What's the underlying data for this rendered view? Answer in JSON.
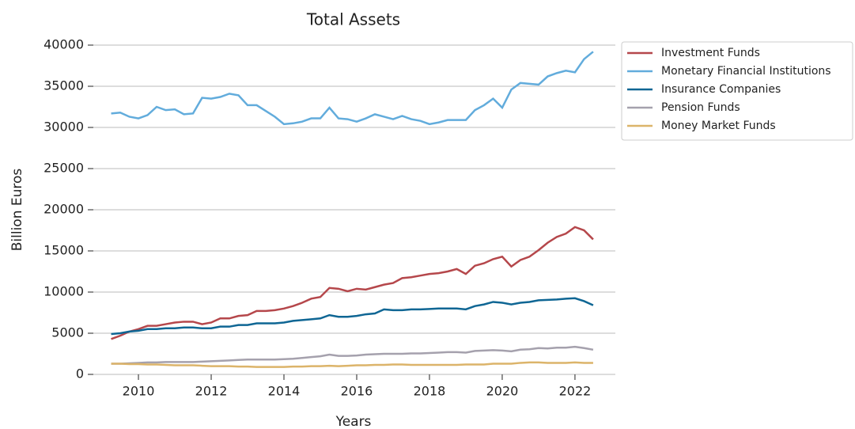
{
  "chart_data": {
    "type": "line",
    "title": "Total Assets",
    "x_label": "Years",
    "y_label": "Billion Euros",
    "x": [
      2009.25,
      2009.5,
      2009.75,
      2010,
      2010.25,
      2010.5,
      2010.75,
      2011,
      2011.25,
      2011.5,
      2011.75,
      2012,
      2012.25,
      2012.5,
      2012.75,
      2013,
      2013.25,
      2013.5,
      2013.75,
      2014,
      2014.25,
      2014.5,
      2014.75,
      2015,
      2015.25,
      2015.5,
      2015.75,
      2016,
      2016.25,
      2016.5,
      2016.75,
      2017,
      2017.25,
      2017.5,
      2017.75,
      2018,
      2018.25,
      2018.5,
      2018.75,
      2019,
      2019.25,
      2019.5,
      2019.75,
      2020,
      2020.25,
      2020.5,
      2020.75,
      2021,
      2021.25,
      2021.5,
      2021.75,
      2022,
      2022.25,
      2022.5
    ],
    "series": [
      {
        "name": "Investment Funds",
        "color": "#b5474b",
        "values": [
          4300,
          4700,
          5200,
          5500,
          5900,
          5900,
          6100,
          6300,
          6400,
          6400,
          6100,
          6300,
          6800,
          6800,
          7100,
          7200,
          7700,
          7700,
          7800,
          8000,
          8300,
          8700,
          9200,
          9400,
          10500,
          10400,
          10100,
          10400,
          10300,
          10600,
          10900,
          11100,
          11700,
          11800,
          12000,
          12200,
          12300,
          12500,
          12800,
          12200,
          13200,
          13500,
          14000,
          14300,
          13100,
          13900,
          14300,
          15100,
          16000,
          16700,
          17100,
          17900,
          17500,
          16400
        ]
      },
      {
        "name": "Monetary Financial Institutions",
        "color": "#62acdc",
        "values": [
          31700,
          31800,
          31300,
          31100,
          31500,
          32500,
          32100,
          32200,
          31600,
          31700,
          33600,
          33500,
          33700,
          34100,
          33900,
          32700,
          32700,
          32000,
          31300,
          30400,
          30500,
          30700,
          31100,
          31100,
          32400,
          31100,
          31000,
          30700,
          31100,
          31600,
          31300,
          31000,
          31400,
          31000,
          30800,
          30400,
          30600,
          30900,
          30900,
          30900,
          32100,
          32700,
          33500,
          32400,
          34600,
          35400,
          35300,
          35200,
          36200,
          36600,
          36900,
          36700,
          38300,
          39200
        ]
      },
      {
        "name": "Insurance Companies",
        "color": "#0f6694",
        "values": [
          4900,
          5000,
          5200,
          5300,
          5500,
          5500,
          5600,
          5600,
          5700,
          5700,
          5600,
          5600,
          5800,
          5800,
          6000,
          6000,
          6200,
          6200,
          6200,
          6300,
          6500,
          6600,
          6700,
          6800,
          7200,
          7000,
          7000,
          7100,
          7300,
          7400,
          7900,
          7800,
          7800,
          7900,
          7900,
          7950,
          8000,
          8000,
          8000,
          7900,
          8300,
          8500,
          8800,
          8700,
          8500,
          8700,
          8800,
          9000,
          9050,
          9100,
          9200,
          9250,
          8900,
          8400
        ]
      },
      {
        "name": "Pension Funds",
        "color": "#a5a1ad",
        "values": [
          1300,
          1300,
          1350,
          1400,
          1450,
          1450,
          1500,
          1500,
          1500,
          1500,
          1550,
          1600,
          1650,
          1700,
          1750,
          1800,
          1800,
          1800,
          1800,
          1850,
          1900,
          2000,
          2100,
          2200,
          2400,
          2250,
          2250,
          2300,
          2400,
          2450,
          2500,
          2500,
          2500,
          2550,
          2550,
          2600,
          2650,
          2700,
          2700,
          2650,
          2850,
          2900,
          2950,
          2900,
          2800,
          3000,
          3050,
          3200,
          3150,
          3250,
          3250,
          3350,
          3200,
          3000
        ]
      },
      {
        "name": "Money Market Funds",
        "color": "#dcb46a",
        "values": [
          1300,
          1300,
          1250,
          1250,
          1200,
          1200,
          1150,
          1100,
          1100,
          1100,
          1050,
          1000,
          1000,
          1000,
          950,
          950,
          900,
          900,
          900,
          900,
          950,
          950,
          1000,
          1000,
          1050,
          1000,
          1050,
          1100,
          1100,
          1150,
          1150,
          1200,
          1200,
          1150,
          1150,
          1150,
          1150,
          1150,
          1150,
          1200,
          1200,
          1200,
          1300,
          1300,
          1300,
          1400,
          1450,
          1450,
          1400,
          1400,
          1400,
          1450,
          1400,
          1400
        ]
      }
    ],
    "xlim": [
      2008.76,
      2023.11
    ],
    "ylim": [
      0,
      40000
    ],
    "xticks": [
      2010,
      2012,
      2014,
      2016,
      2018,
      2020,
      2022
    ],
    "yticks": [
      0,
      5000,
      10000,
      15000,
      20000,
      25000,
      30000,
      35000,
      40000
    ],
    "grid": "y",
    "legend": "upper right outside"
  }
}
